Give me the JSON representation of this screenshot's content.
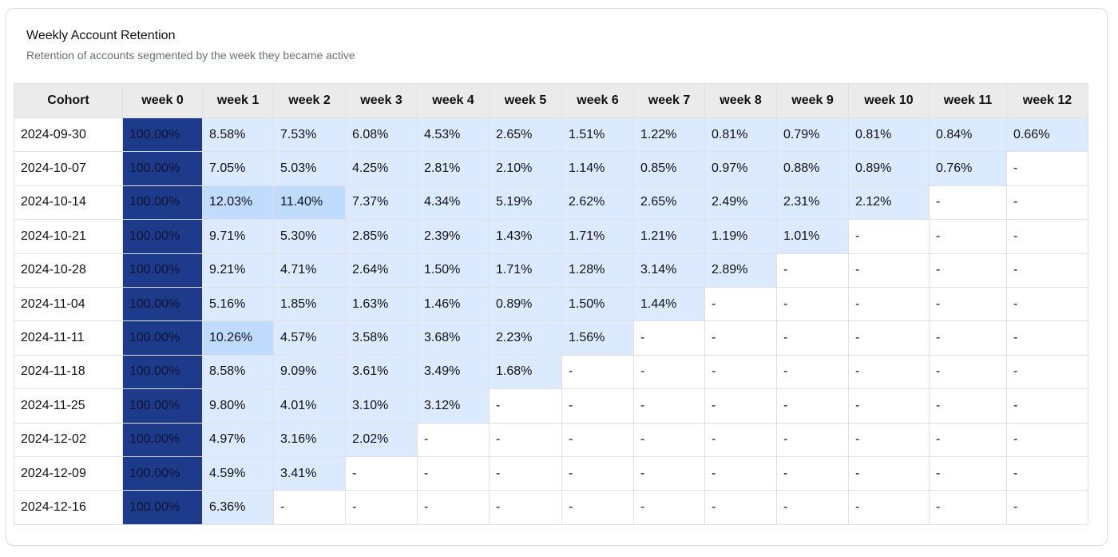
{
  "chart_data": {
    "type": "heatmap",
    "title": "Weekly Account Retention",
    "subtitle": "Retention of accounts segmented by the week they became active",
    "header": [
      "Cohort",
      "week 0",
      "week 1",
      "week 2",
      "week 3",
      "week 4",
      "week 5",
      "week 6",
      "week 7",
      "week 8",
      "week 9",
      "week 10",
      "week 11",
      "week 12"
    ],
    "rows": [
      {
        "cohort": "2024-09-30",
        "values": [
          "100.00%",
          "8.58%",
          "7.53%",
          "6.08%",
          "4.53%",
          "2.65%",
          "1.51%",
          "1.22%",
          "0.81%",
          "0.79%",
          "0.81%",
          "0.84%",
          "0.66%"
        ]
      },
      {
        "cohort": "2024-10-07",
        "values": [
          "100.00%",
          "7.05%",
          "5.03%",
          "4.25%",
          "2.81%",
          "2.10%",
          "1.14%",
          "0.85%",
          "0.97%",
          "0.88%",
          "0.89%",
          "0.76%",
          "-"
        ]
      },
      {
        "cohort": "2024-10-14",
        "values": [
          "100.00%",
          "12.03%",
          "11.40%",
          "7.37%",
          "4.34%",
          "5.19%",
          "2.62%",
          "2.65%",
          "2.49%",
          "2.31%",
          "2.12%",
          "-",
          "-"
        ]
      },
      {
        "cohort": "2024-10-21",
        "values": [
          "100.00%",
          "9.71%",
          "5.30%",
          "2.85%",
          "2.39%",
          "1.43%",
          "1.71%",
          "1.21%",
          "1.19%",
          "1.01%",
          "-",
          "-",
          "-"
        ]
      },
      {
        "cohort": "2024-10-28",
        "values": [
          "100.00%",
          "9.21%",
          "4.71%",
          "2.64%",
          "1.50%",
          "1.71%",
          "1.28%",
          "3.14%",
          "2.89%",
          "-",
          "-",
          "-",
          "-"
        ]
      },
      {
        "cohort": "2024-11-04",
        "values": [
          "100.00%",
          "5.16%",
          "1.85%",
          "1.63%",
          "1.46%",
          "0.89%",
          "1.50%",
          "1.44%",
          "-",
          "-",
          "-",
          "-",
          "-"
        ]
      },
      {
        "cohort": "2024-11-11",
        "values": [
          "100.00%",
          "10.26%",
          "4.57%",
          "3.58%",
          "3.68%",
          "2.23%",
          "1.56%",
          "-",
          "-",
          "-",
          "-",
          "-",
          "-"
        ]
      },
      {
        "cohort": "2024-11-18",
        "values": [
          "100.00%",
          "8.58%",
          "9.09%",
          "3.61%",
          "3.49%",
          "1.68%",
          "-",
          "-",
          "-",
          "-",
          "-",
          "-",
          "-"
        ]
      },
      {
        "cohort": "2024-11-25",
        "values": [
          "100.00%",
          "9.80%",
          "4.01%",
          "3.10%",
          "3.12%",
          "-",
          "-",
          "-",
          "-",
          "-",
          "-",
          "-",
          "-"
        ]
      },
      {
        "cohort": "2024-12-02",
        "values": [
          "100.00%",
          "4.97%",
          "3.16%",
          "2.02%",
          "-",
          "-",
          "-",
          "-",
          "-",
          "-",
          "-",
          "-",
          "-"
        ]
      },
      {
        "cohort": "2024-12-09",
        "values": [
          "100.00%",
          "4.59%",
          "3.41%",
          "-",
          "-",
          "-",
          "-",
          "-",
          "-",
          "-",
          "-",
          "-",
          "-"
        ]
      },
      {
        "cohort": "2024-12-16",
        "values": [
          "100.00%",
          "6.36%",
          "-",
          "-",
          "-",
          "-",
          "-",
          "-",
          "-",
          "-",
          "-",
          "-",
          "-"
        ]
      }
    ],
    "colors": {
      "full": "#1e3a8a",
      "high": "#bfdbfe",
      "low": "#dbeafe",
      "empty": "#ffffff",
      "header_bg": "#ebebeb"
    }
  }
}
